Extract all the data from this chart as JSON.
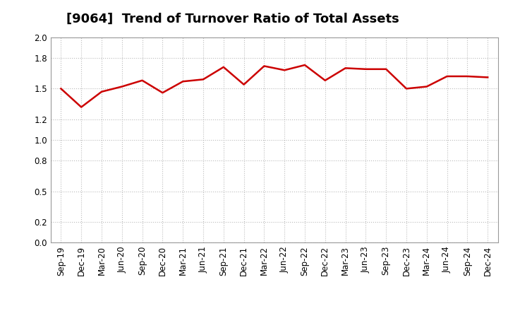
{
  "title": "[9064]  Trend of Turnover Ratio of Total Assets",
  "x_labels": [
    "Sep-19",
    "Dec-19",
    "Mar-20",
    "Jun-20",
    "Sep-20",
    "Dec-20",
    "Mar-21",
    "Jun-21",
    "Sep-21",
    "Dec-21",
    "Mar-22",
    "Jun-22",
    "Sep-22",
    "Dec-22",
    "Mar-23",
    "Jun-23",
    "Sep-23",
    "Dec-23",
    "Mar-24",
    "Jun-24",
    "Sep-24",
    "Dec-24"
  ],
  "y_values": [
    1.5,
    1.32,
    1.47,
    1.52,
    1.58,
    1.46,
    1.57,
    1.59,
    1.71,
    1.54,
    1.72,
    1.68,
    1.73,
    1.58,
    1.7,
    1.69,
    1.69,
    1.5,
    1.52,
    1.62,
    1.62,
    1.61
  ],
  "line_color": "#cc0000",
  "line_width": 1.8,
  "ylim": [
    0.0,
    2.0
  ],
  "yticks": [
    0.0,
    0.2,
    0.5,
    0.8,
    1.0,
    1.2,
    1.5,
    1.8,
    2.0
  ],
  "background_color": "#ffffff",
  "grid_color": "#bbbbbb",
  "title_fontsize": 13,
  "tick_fontsize": 8.5
}
